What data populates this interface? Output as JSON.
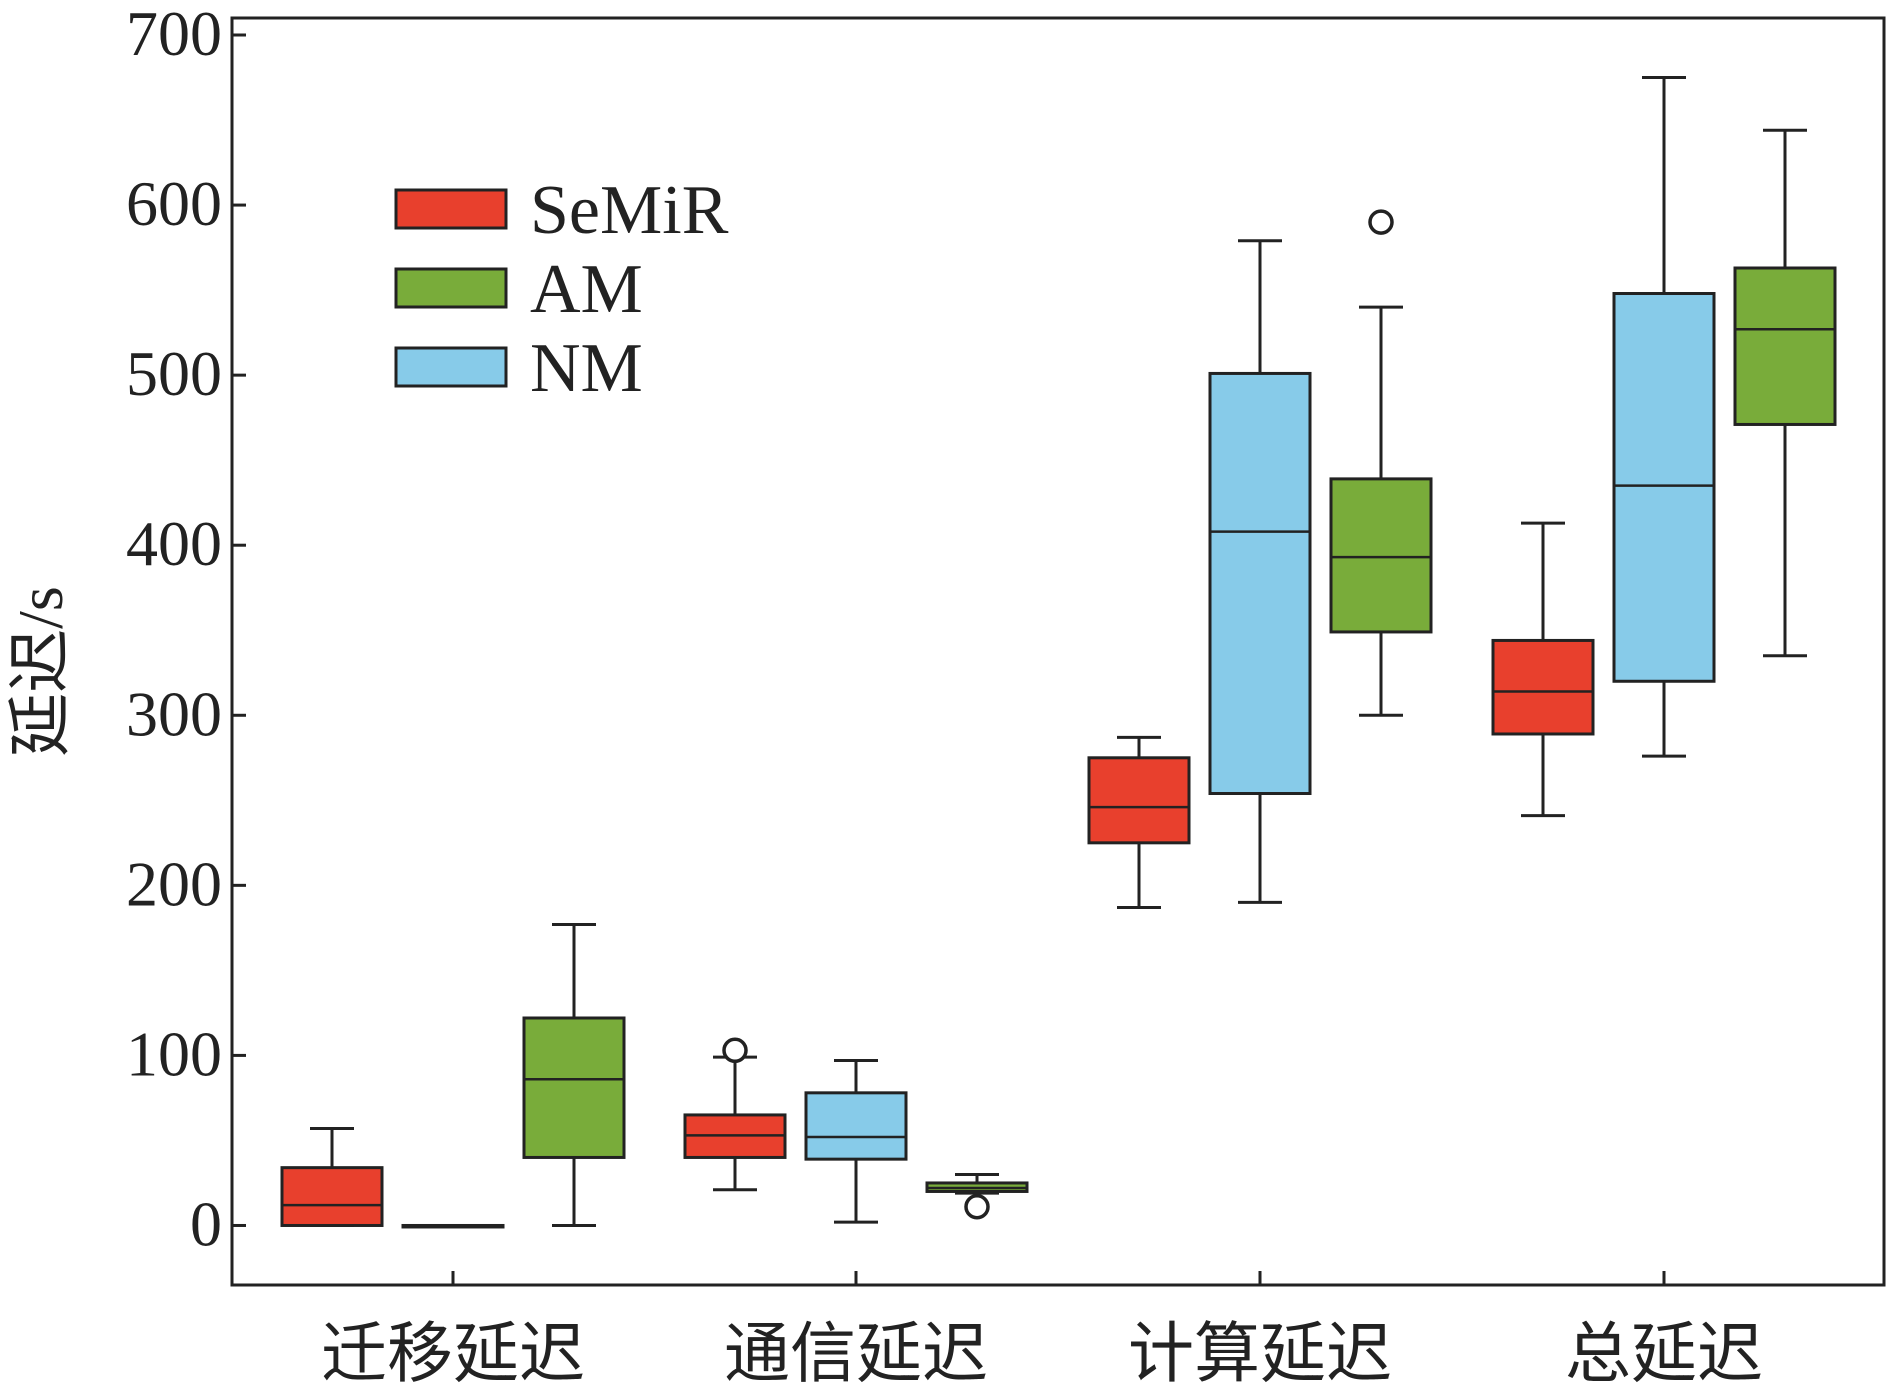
{
  "chart_data": {
    "type": "box",
    "title": "",
    "xlabel": "",
    "ylabel": "延迟/s",
    "ylim": [
      -35,
      710
    ],
    "yticks": [
      0,
      100,
      200,
      300,
      400,
      500,
      600,
      700
    ],
    "categories": [
      "迁移延迟",
      "通信延迟",
      "计算延迟",
      "总延迟"
    ],
    "legend": {
      "position": "top-left"
    },
    "series": [
      {
        "name": "SeMiR",
        "color": "#e8402d",
        "boxes": [
          {
            "min": 0,
            "q1": 0,
            "median": 12,
            "q3": 34,
            "max": 57,
            "outliers": []
          },
          {
            "min": 21,
            "q1": 40,
            "median": 53,
            "q3": 65,
            "max": 99,
            "outliers": [
              103
            ]
          },
          {
            "min": 187,
            "q1": 225,
            "median": 246,
            "q3": 275,
            "max": 287,
            "outliers": []
          },
          {
            "min": 241,
            "q1": 289,
            "median": 314,
            "q3": 344,
            "max": 413,
            "outliers": []
          }
        ]
      },
      {
        "name": "AM",
        "color": "#79ac3a",
        "boxes": [
          {
            "min": 0,
            "q1": 40,
            "median": 86,
            "q3": 122,
            "max": 177,
            "outliers": []
          },
          {
            "min": 19,
            "q1": 20,
            "median": 22,
            "q3": 25,
            "max": 30,
            "outliers": [
              11
            ]
          },
          {
            "min": 300,
            "q1": 349,
            "median": 393,
            "q3": 439,
            "max": 540,
            "outliers": [
              590
            ]
          },
          {
            "min": 335,
            "q1": 471,
            "median": 527,
            "q3": 563,
            "max": 644,
            "outliers": []
          }
        ]
      },
      {
        "name": "NM",
        "color": "#87cbe9",
        "boxes": [
          {
            "min": 0,
            "q1": 0,
            "median": 0,
            "q3": 0,
            "max": 0,
            "outliers": []
          },
          {
            "min": 2,
            "q1": 39,
            "median": 52,
            "q3": 78,
            "max": 97,
            "outliers": []
          },
          {
            "min": 190,
            "q1": 254,
            "median": 408,
            "q3": 501,
            "max": 579,
            "outliers": []
          },
          {
            "min": 276,
            "q1": 320,
            "median": 435,
            "q3": 548,
            "max": 675,
            "outliers": []
          }
        ]
      }
    ],
    "layout_order": [
      [
        "SeMiR",
        "NM",
        "AM"
      ],
      [
        "SeMiR",
        "NM",
        "AM"
      ],
      [
        "SeMiR",
        "NM",
        "AM"
      ],
      [
        "SeMiR",
        "NM",
        "AM"
      ]
    ],
    "legend_order": [
      "SeMiR",
      "AM",
      "NM"
    ]
  }
}
